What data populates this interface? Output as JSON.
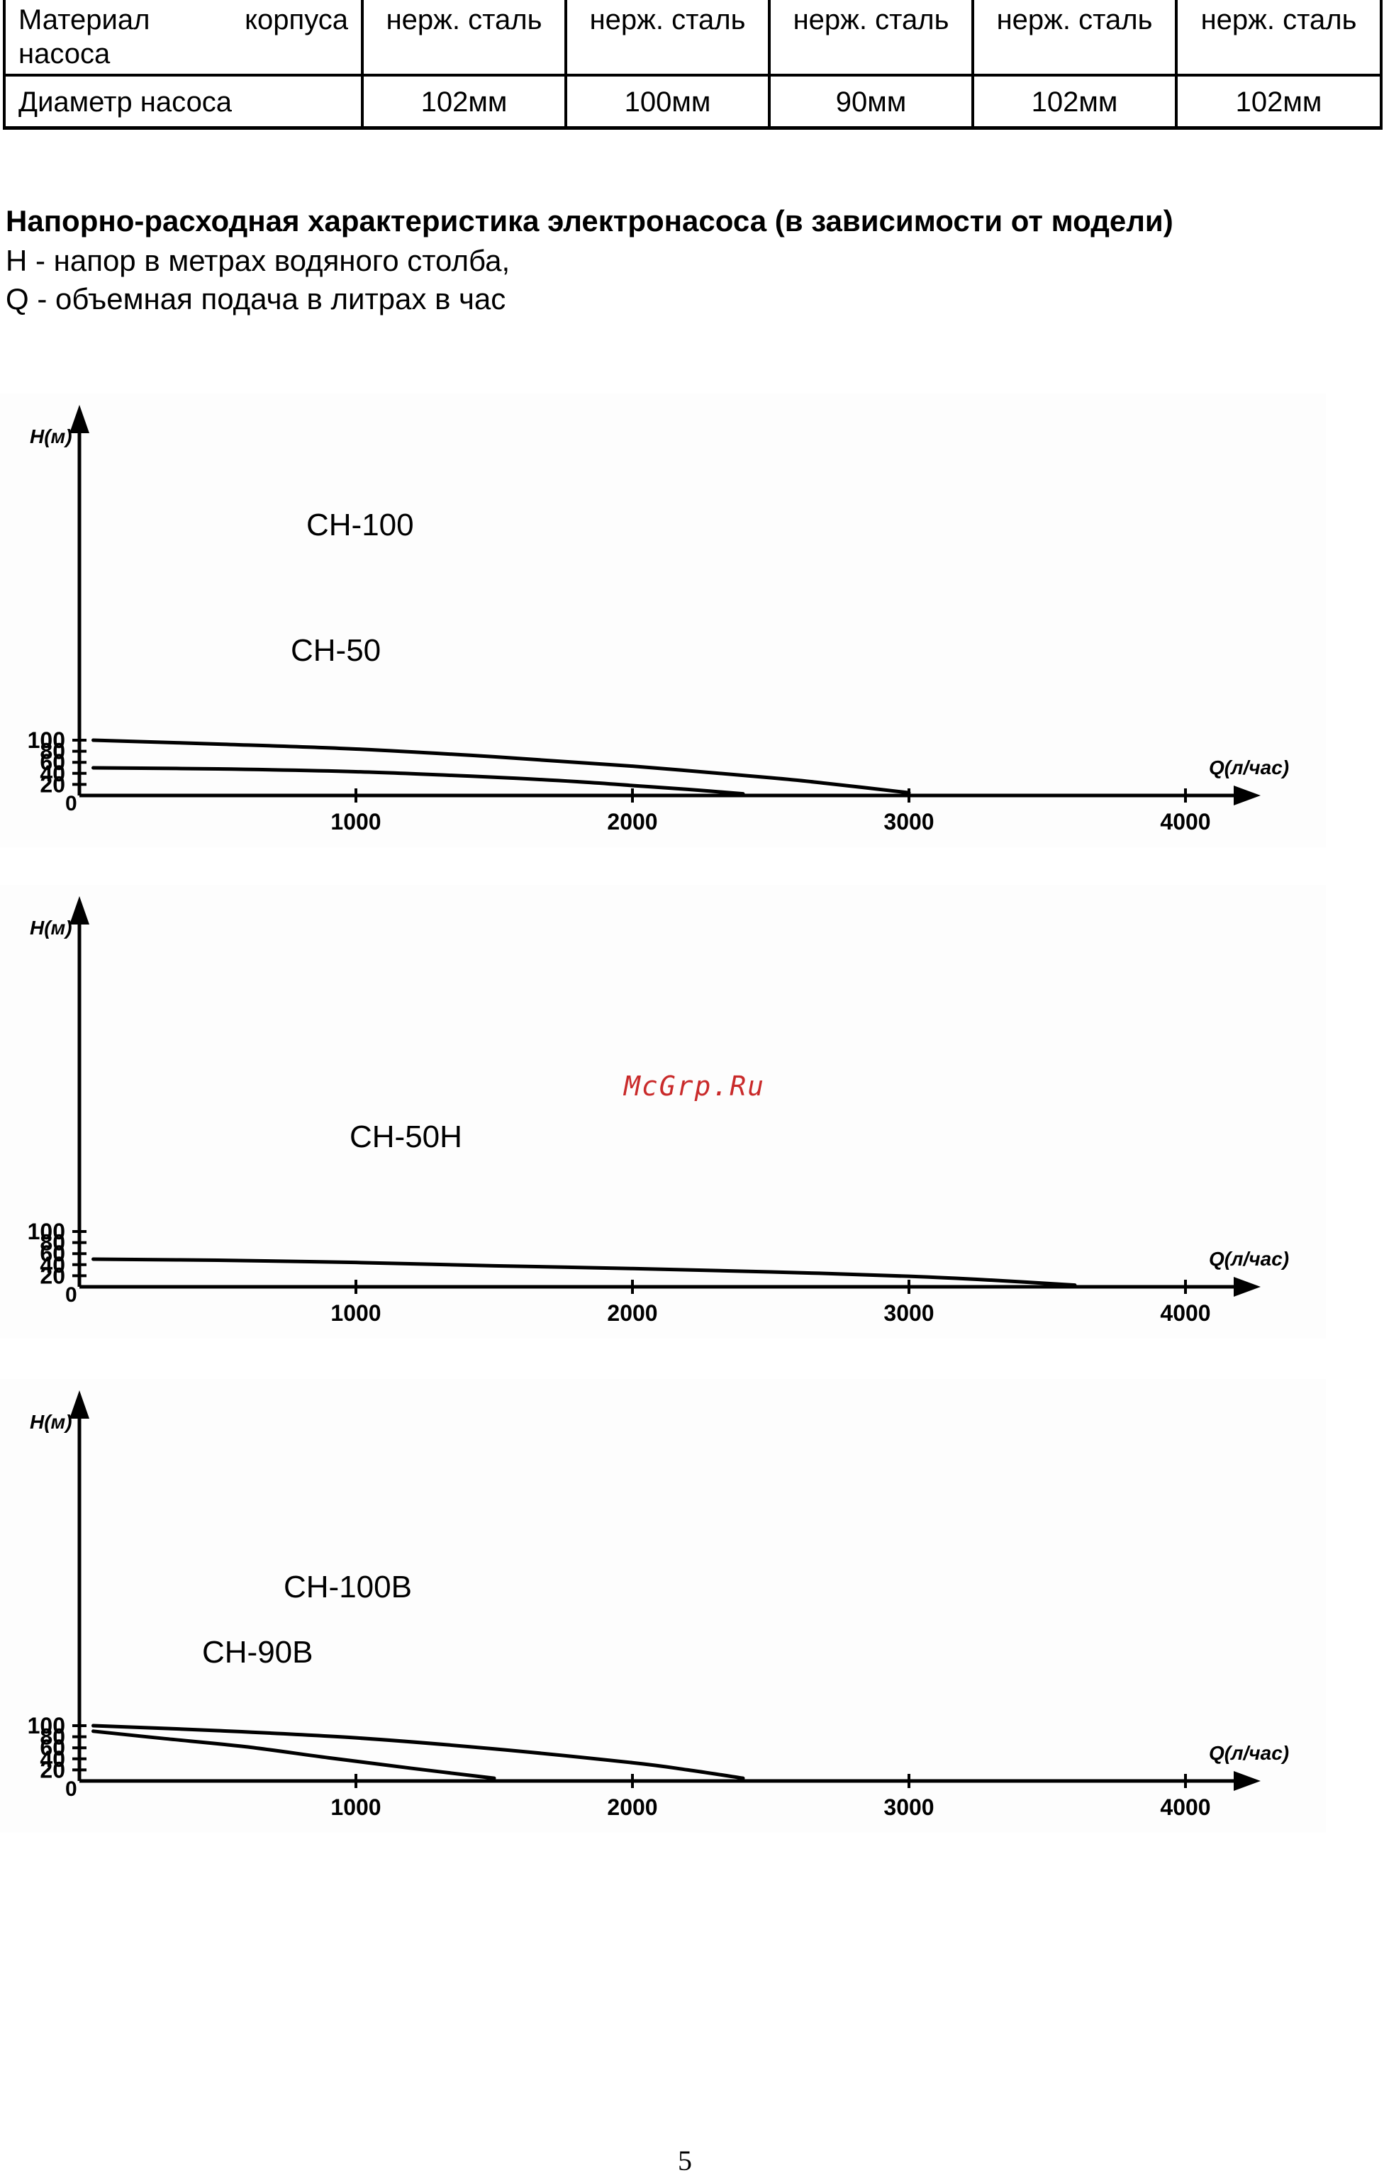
{
  "spec_table": {
    "rows": [
      {
        "label": "Материал корпуса насоса",
        "values": [
          "нерж. сталь",
          "нерж. сталь",
          "нерж. сталь",
          "нерж. сталь",
          "нерж. сталь"
        ]
      },
      {
        "label": "Диаметр насоса",
        "values": [
          "102мм",
          "100мм",
          "90мм",
          "102мм",
          "102мм"
        ]
      }
    ]
  },
  "section": {
    "title": "Напорно-расходная характеристика электронасоса (в зависимости от модели)",
    "h_note": "H - напор в метрах водяного столба,",
    "q_note": "Q - объемная подача в литрах в час"
  },
  "watermark": "McGrp.Ru",
  "page_number": "5",
  "chart_data": [
    {
      "type": "line",
      "ylabel": "H(м)",
      "xlabel": "Q(л/час)",
      "xlim": [
        0,
        4000
      ],
      "ylim": [
        0,
        100
      ],
      "x_ticks": [
        1000,
        2000,
        3000,
        4000
      ],
      "y_ticks": [
        20,
        40,
        60,
        80,
        100
      ],
      "origin_label": "0",
      "grid": false,
      "series": [
        {
          "name": "CH-100",
          "x": [
            50,
            500,
            1000,
            1500,
            2000,
            2500,
            2700,
            3000
          ],
          "y": [
            100,
            93,
            84,
            70,
            53,
            32,
            22,
            5
          ]
        },
        {
          "name": "CH-50",
          "x": [
            50,
            500,
            1000,
            1500,
            1800,
            2000,
            2200,
            2400
          ],
          "y": [
            50,
            48,
            43,
            33,
            25,
            18,
            11,
            3
          ]
        }
      ]
    },
    {
      "type": "line",
      "ylabel": "H(м)",
      "xlabel": "Q(л/час)",
      "xlim": [
        0,
        4000
      ],
      "ylim": [
        0,
        100
      ],
      "x_ticks": [
        1000,
        2000,
        3000,
        4000
      ],
      "y_ticks": [
        20,
        40,
        60,
        80,
        100
      ],
      "origin_label": "0",
      "grid": false,
      "series": [
        {
          "name": "CH-50H",
          "x": [
            50,
            500,
            1000,
            1500,
            2000,
            2500,
            3000,
            3300,
            3600
          ],
          "y": [
            50,
            48,
            44,
            38,
            33,
            27,
            19,
            12,
            3
          ]
        }
      ]
    },
    {
      "type": "line",
      "ylabel": "H(м)",
      "xlabel": "Q(л/час)",
      "xlim": [
        0,
        4000
      ],
      "ylim": [
        0,
        100
      ],
      "x_ticks": [
        1000,
        2000,
        3000,
        4000
      ],
      "y_ticks": [
        20,
        40,
        60,
        80,
        100
      ],
      "origin_label": "0",
      "grid": false,
      "series": [
        {
          "name": "CH-100B",
          "x": [
            50,
            500,
            1000,
            1500,
            2000,
            2200,
            2400
          ],
          "y": [
            100,
            91,
            78,
            58,
            33,
            20,
            5
          ]
        },
        {
          "name": "CH-90B",
          "x": [
            50,
            300,
            600,
            900,
            1200,
            1500
          ],
          "y": [
            90,
            77,
            62,
            42,
            23,
            5
          ]
        }
      ]
    }
  ]
}
